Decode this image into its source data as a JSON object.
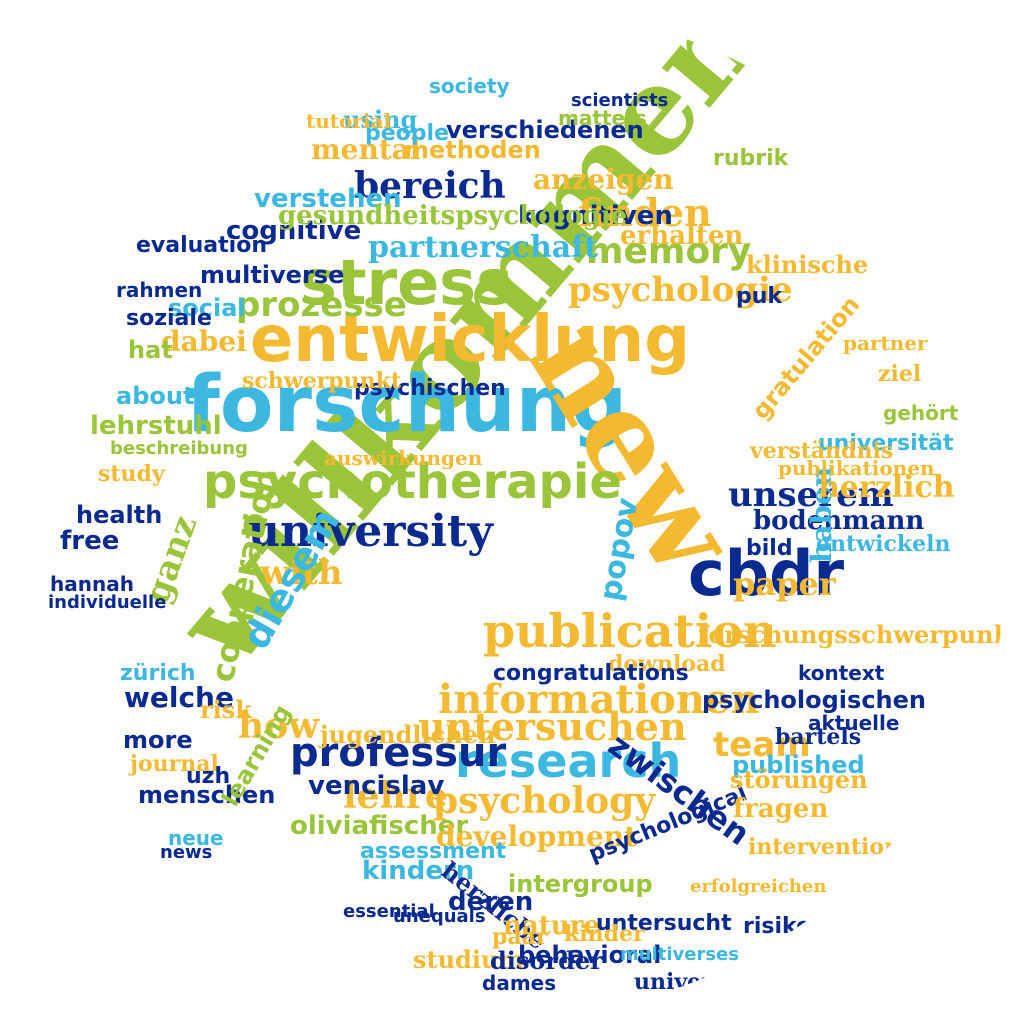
{
  "colors": {
    "navy": "#0b2a8f",
    "sky": "#3cb8e0",
    "lime": "#9ac43a",
    "gold": "#f3b931",
    "blue": "#2f63c9"
  },
  "words": [
    {
      "text": "willkommen",
      "color": "lime"
    },
    {
      "text": "forschung",
      "color": "sky"
    },
    {
      "text": "new",
      "color": "gold"
    },
    {
      "text": "entwicklung",
      "color": "gold"
    },
    {
      "text": "cbdr",
      "color": "navy"
    },
    {
      "text": "psychotherapie",
      "color": "lime"
    },
    {
      "text": "university",
      "color": "navy"
    },
    {
      "text": "stress",
      "color": "lime"
    },
    {
      "text": "publication",
      "color": "gold"
    },
    {
      "text": "research",
      "color": "sky"
    },
    {
      "text": "professur",
      "color": "navy"
    },
    {
      "text": "informationen",
      "color": "gold"
    },
    {
      "text": "psychology",
      "color": "gold"
    },
    {
      "text": "untersuchen",
      "color": "gold"
    },
    {
      "text": "unserem",
      "color": "navy"
    },
    {
      "text": "memory",
      "color": "lime"
    },
    {
      "text": "prozesse",
      "color": "lime"
    },
    {
      "text": "psychologie",
      "color": "gold"
    },
    {
      "text": "finden",
      "color": "gold"
    },
    {
      "text": "bereich",
      "color": "navy"
    },
    {
      "text": "partnerschaft",
      "color": "sky"
    },
    {
      "text": "anzeigen",
      "color": "gold"
    },
    {
      "text": "methoden",
      "color": "gold"
    },
    {
      "text": "mental",
      "color": "gold"
    },
    {
      "text": "verstehen",
      "color": "sky"
    },
    {
      "text": "cognitive",
      "color": "navy"
    },
    {
      "text": "multiverse",
      "color": "navy"
    },
    {
      "text": "dabei",
      "color": "gold"
    },
    {
      "text": "social",
      "color": "sky"
    },
    {
      "text": "health",
      "color": "navy"
    },
    {
      "text": "with",
      "color": "gold"
    },
    {
      "text": "ganz",
      "color": "lime"
    },
    {
      "text": "diesem",
      "color": "sky"
    },
    {
      "text": "cooperation",
      "color": "lime"
    },
    {
      "text": "how",
      "color": "gold"
    },
    {
      "text": "welche",
      "color": "navy"
    },
    {
      "text": "lehre",
      "color": "gold"
    },
    {
      "text": "vencislav",
      "color": "navy"
    },
    {
      "text": "oliviafischer",
      "color": "lime"
    },
    {
      "text": "development",
      "color": "gold"
    },
    {
      "text": "kindern",
      "color": "sky"
    },
    {
      "text": "herzliche",
      "color": "navy"
    },
    {
      "text": "zwischen",
      "color": "navy"
    },
    {
      "text": "team",
      "color": "gold"
    },
    {
      "text": "paper",
      "color": "gold"
    },
    {
      "text": "bodenmann",
      "color": "navy"
    },
    {
      "text": "popov",
      "color": "sky"
    },
    {
      "text": "psychologischen",
      "color": "navy"
    },
    {
      "text": "forschungsschwerpunkte",
      "color": "gold"
    },
    {
      "text": "universität",
      "color": "sky"
    },
    {
      "text": "gratulation",
      "color": "gold"
    },
    {
      "text": "lehrstuhl",
      "color": "lime"
    },
    {
      "text": "psychischen",
      "color": "navy"
    },
    {
      "text": "schwerpunkt",
      "color": "gold"
    },
    {
      "text": "about",
      "color": "sky"
    },
    {
      "text": "beschreibung",
      "color": "lime"
    },
    {
      "text": "study",
      "color": "gold"
    },
    {
      "text": "free",
      "color": "navy"
    },
    {
      "text": "hat",
      "color": "lime"
    },
    {
      "text": "soziale",
      "color": "navy"
    },
    {
      "text": "rahmen",
      "color": "navy"
    },
    {
      "text": "klinische",
      "color": "gold"
    },
    {
      "text": "puk",
      "color": "navy"
    },
    {
      "text": "haben",
      "color": "sky"
    },
    {
      "text": "entwickeln",
      "color": "sky"
    },
    {
      "text": "herzlich",
      "color": "gold"
    },
    {
      "text": "bild",
      "color": "navy"
    },
    {
      "text": "published",
      "color": "sky"
    },
    {
      "text": "more",
      "color": "navy"
    },
    {
      "text": "menschen",
      "color": "navy"
    },
    {
      "text": "download",
      "color": "gold"
    },
    {
      "text": "kontext",
      "color": "navy"
    },
    {
      "text": "verständnis",
      "color": "gold"
    },
    {
      "text": "gehört",
      "color": "lime"
    },
    {
      "text": "zürich",
      "color": "sky"
    },
    {
      "text": "risk",
      "color": "gold"
    },
    {
      "text": "journal",
      "color": "gold"
    },
    {
      "text": "learning",
      "color": "lime"
    },
    {
      "text": "deren",
      "color": "navy"
    },
    {
      "text": "intergroup",
      "color": "lime"
    },
    {
      "text": "nature",
      "color": "gold"
    },
    {
      "text": "behavioral",
      "color": "navy"
    },
    {
      "text": "studium",
      "color": "gold"
    },
    {
      "text": "psychological",
      "color": "navy"
    },
    {
      "text": "untersucht",
      "color": "navy"
    },
    {
      "text": "risiken",
      "color": "navy"
    },
    {
      "text": "fragen",
      "color": "gold"
    },
    {
      "text": "kognitiven",
      "color": "navy"
    },
    {
      "text": "erhalten",
      "color": "gold"
    },
    {
      "text": "gesundheitspsychologie",
      "color": "lime"
    },
    {
      "text": "verschiedenen",
      "color": "navy"
    },
    {
      "text": "people",
      "color": "sky"
    },
    {
      "text": "using",
      "color": "sky"
    },
    {
      "text": "auswirkungen",
      "color": "gold"
    },
    {
      "text": "publikationen",
      "color": "gold"
    },
    {
      "text": "congratulations",
      "color": "navy"
    },
    {
      "text": "interventionen",
      "color": "gold"
    },
    {
      "text": "störungen",
      "color": "gold"
    },
    {
      "text": "erfolgreichen",
      "color": "gold"
    },
    {
      "text": "jugendlichen",
      "color": "gold"
    },
    {
      "text": "aktuelle",
      "color": "navy"
    },
    {
      "text": "essential",
      "color": "navy"
    },
    {
      "text": "kinder",
      "color": "gold"
    },
    {
      "text": "multiverses",
      "color": "sky"
    },
    {
      "text": "dames",
      "color": "navy"
    },
    {
      "text": "paar",
      "color": "gold"
    },
    {
      "text": "disorder",
      "color": "navy"
    },
    {
      "text": "hannah",
      "color": "navy"
    },
    {
      "text": "individuelle",
      "color": "navy"
    },
    {
      "text": "evaluation",
      "color": "navy"
    },
    {
      "text": "unequals",
      "color": "navy"
    },
    {
      "text": "neue",
      "color": "sky"
    },
    {
      "text": "news",
      "color": "navy"
    },
    {
      "text": "uzh",
      "color": "navy"
    },
    {
      "text": "society",
      "color": "sky"
    },
    {
      "text": "matters",
      "color": "lime"
    },
    {
      "text": "scientists",
      "color": "navy"
    },
    {
      "text": "tutorial",
      "color": "gold"
    },
    {
      "text": "rubrik",
      "color": "lime"
    },
    {
      "text": "universe",
      "color": "navy"
    },
    {
      "text": "bartels",
      "color": "navy"
    },
    {
      "text": "partner",
      "color": "gold"
    },
    {
      "text": "ziel",
      "color": "gold"
    },
    {
      "text": "assessment",
      "color": "sky"
    }
  ]
}
